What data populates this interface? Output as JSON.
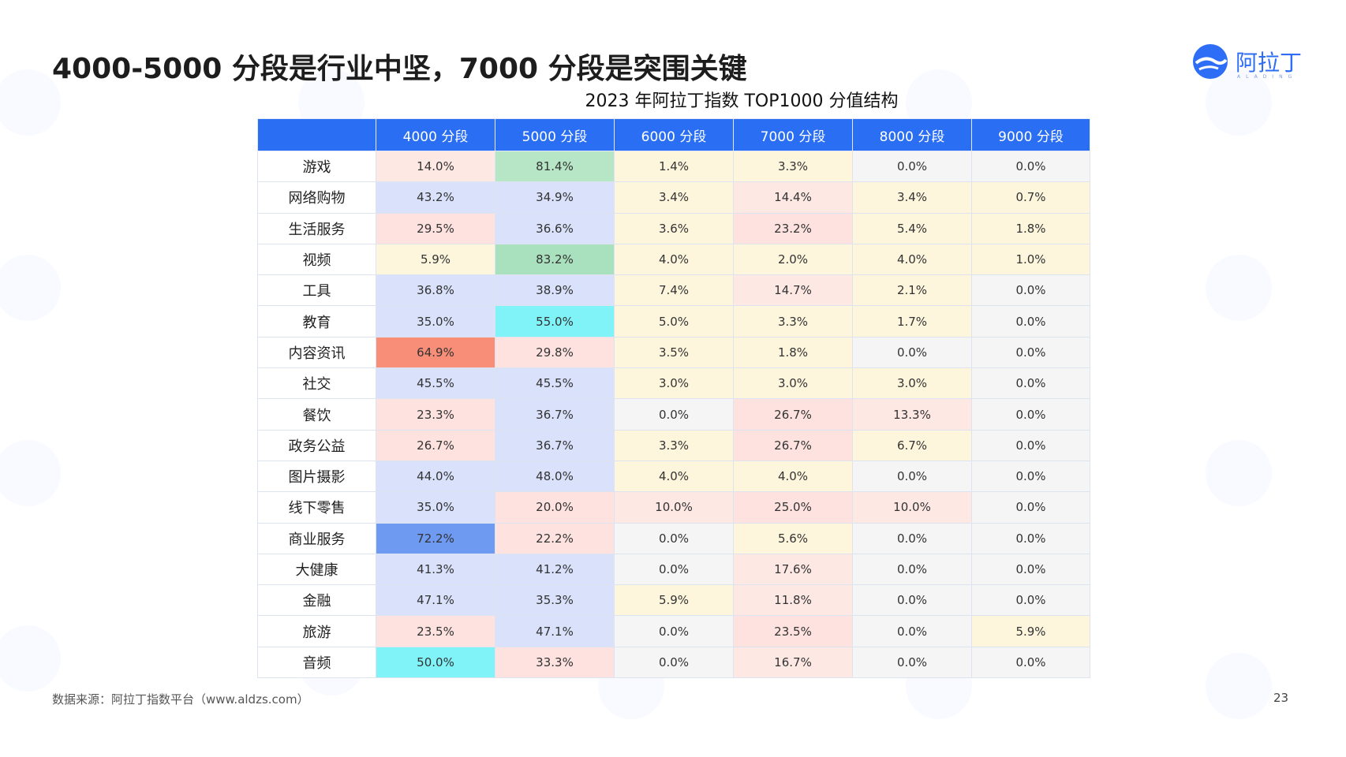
{
  "slide": {
    "title": "4000-5000 分段是行业中坚，7000 分段是突围关键",
    "table_title": "2023 年阿拉丁指数 TOP1000 分值结构",
    "logo_text": "阿拉丁",
    "logo_subtext": "ALADING",
    "source": "数据来源：阿拉丁指数平台（www.aldzs.com）",
    "page_number": "23"
  },
  "table": {
    "columns": [
      "",
      "4000 分段",
      "5000 分段",
      "6000 分段",
      "7000 分段",
      "8000 分段",
      "9000 分段"
    ],
    "rows": [
      {
        "category": "游戏",
        "values": [
          "14.0%",
          "81.4%",
          "1.4%",
          "3.3%",
          "0.0%",
          "0.0%"
        ],
        "colors": [
          "#fde8e4",
          "#b6e6c6",
          "#fdf6dc",
          "#fdf6dc",
          "#f5f5f5",
          "#f5f5f5"
        ]
      },
      {
        "category": "网络购物",
        "values": [
          "43.2%",
          "34.9%",
          "3.4%",
          "14.4%",
          "3.4%",
          "0.7%"
        ],
        "colors": [
          "#d9e1fb",
          "#d9e1fb",
          "#fdf6dc",
          "#fde8e4",
          "#fdf6dc",
          "#fdf6dc"
        ]
      },
      {
        "category": "生活服务",
        "values": [
          "29.5%",
          "36.6%",
          "3.6%",
          "23.2%",
          "5.4%",
          "1.8%"
        ],
        "colors": [
          "#fde2df",
          "#d9e1fb",
          "#fdf6dc",
          "#fde2df",
          "#fdf6dc",
          "#fdf6dc"
        ]
      },
      {
        "category": "视频",
        "values": [
          "5.9%",
          "83.2%",
          "4.0%",
          "2.0%",
          "4.0%",
          "1.0%"
        ],
        "colors": [
          "#fdf6dc",
          "#a9e0bd",
          "#fdf6dc",
          "#fdf6dc",
          "#fdf6dc",
          "#fdf6dc"
        ]
      },
      {
        "category": "工具",
        "values": [
          "36.8%",
          "38.9%",
          "7.4%",
          "14.7%",
          "2.1%",
          "0.0%"
        ],
        "colors": [
          "#d9e1fb",
          "#d9e1fb",
          "#fdf6dc",
          "#fde8e4",
          "#fdf6dc",
          "#f5f5f5"
        ]
      },
      {
        "category": "教育",
        "values": [
          "35.0%",
          "55.0%",
          "5.0%",
          "3.3%",
          "1.7%",
          "0.0%"
        ],
        "colors": [
          "#d9e1fb",
          "#7ff3f7",
          "#fdf6dc",
          "#fdf6dc",
          "#fdf6dc",
          "#f5f5f5"
        ]
      },
      {
        "category": "内容资讯",
        "values": [
          "64.9%",
          "29.8%",
          "3.5%",
          "1.8%",
          "0.0%",
          "0.0%"
        ],
        "colors": [
          "#f88d78",
          "#fde2df",
          "#fdf6dc",
          "#fdf6dc",
          "#f5f5f5",
          "#f5f5f5"
        ]
      },
      {
        "category": "社交",
        "values": [
          "45.5%",
          "45.5%",
          "3.0%",
          "3.0%",
          "3.0%",
          "0.0%"
        ],
        "colors": [
          "#d9e1fb",
          "#d9e1fb",
          "#fdf6dc",
          "#fdf6dc",
          "#fdf6dc",
          "#f5f5f5"
        ]
      },
      {
        "category": "餐饮",
        "values": [
          "23.3%",
          "36.7%",
          "0.0%",
          "26.7%",
          "13.3%",
          "0.0%"
        ],
        "colors": [
          "#fde2df",
          "#d9e1fb",
          "#f5f5f5",
          "#fde2df",
          "#fde8e4",
          "#f5f5f5"
        ]
      },
      {
        "category": "政务公益",
        "values": [
          "26.7%",
          "36.7%",
          "3.3%",
          "26.7%",
          "6.7%",
          "0.0%"
        ],
        "colors": [
          "#fde2df",
          "#d9e1fb",
          "#fdf6dc",
          "#fde2df",
          "#fdf6dc",
          "#f5f5f5"
        ]
      },
      {
        "category": "图片摄影",
        "values": [
          "44.0%",
          "48.0%",
          "4.0%",
          "4.0%",
          "0.0%",
          "0.0%"
        ],
        "colors": [
          "#d9e1fb",
          "#d9e1fb",
          "#fdf6dc",
          "#fdf6dc",
          "#f5f5f5",
          "#f5f5f5"
        ]
      },
      {
        "category": "线下零售",
        "values": [
          "35.0%",
          "20.0%",
          "10.0%",
          "25.0%",
          "10.0%",
          "0.0%"
        ],
        "colors": [
          "#d9e1fb",
          "#fde2df",
          "#fde8e4",
          "#fde2df",
          "#fde8e4",
          "#f5f5f5"
        ]
      },
      {
        "category": "商业服务",
        "values": [
          "72.2%",
          "22.2%",
          "0.0%",
          "5.6%",
          "0.0%",
          "0.0%"
        ],
        "colors": [
          "#6e9af2",
          "#fde2df",
          "#f5f5f5",
          "#fdf6dc",
          "#f5f5f5",
          "#f5f5f5"
        ]
      },
      {
        "category": "大健康",
        "values": [
          "41.3%",
          "41.2%",
          "0.0%",
          "17.6%",
          "0.0%",
          "0.0%"
        ],
        "colors": [
          "#d9e1fb",
          "#d9e1fb",
          "#f5f5f5",
          "#fde8e4",
          "#f5f5f5",
          "#f5f5f5"
        ]
      },
      {
        "category": "金融",
        "values": [
          "47.1%",
          "35.3%",
          "5.9%",
          "11.8%",
          "0.0%",
          "0.0%"
        ],
        "colors": [
          "#d9e1fb",
          "#d9e1fb",
          "#fdf6dc",
          "#fde8e4",
          "#f5f5f5",
          "#f5f5f5"
        ]
      },
      {
        "category": "旅游",
        "values": [
          "23.5%",
          "47.1%",
          "0.0%",
          "23.5%",
          "0.0%",
          "5.9%"
        ],
        "colors": [
          "#fde2df",
          "#d9e1fb",
          "#f5f5f5",
          "#fde2df",
          "#f5f5f5",
          "#fdf6dc"
        ]
      },
      {
        "category": "音频",
        "values": [
          "50.0%",
          "33.3%",
          "0.0%",
          "16.7%",
          "0.0%",
          "0.0%"
        ],
        "colors": [
          "#7ff3f7",
          "#fde2df",
          "#f5f5f5",
          "#fde8e4",
          "#f5f5f5",
          "#f5f5f5"
        ]
      }
    ]
  },
  "colors": {
    "header_blue": "#2a6ef4",
    "brand_blue": "#2e6df5"
  }
}
